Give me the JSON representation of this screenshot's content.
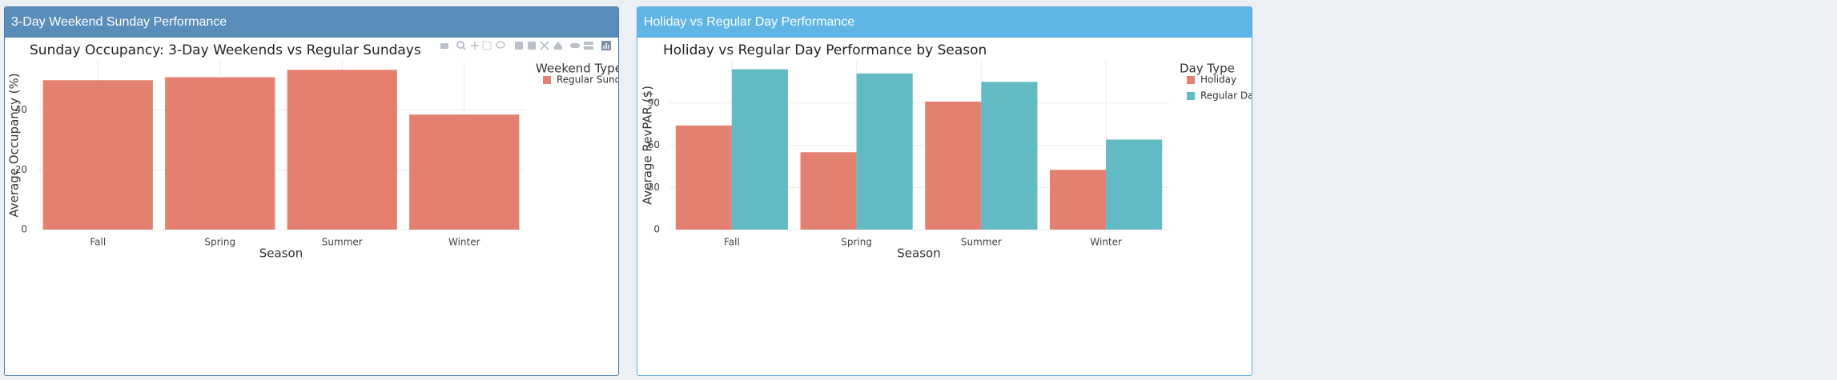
{
  "boxes": [
    {
      "header": "3-Day Weekend Sunday Performance",
      "header_color": "#5b8dbb",
      "border_color": "#4b7db0"
    },
    {
      "header": "Holiday vs Regular Day Performance",
      "header_color": "#5fb6e4",
      "border_color": "#55aee0"
    }
  ],
  "modebar_icons": [
    "camera-icon",
    "zoom-icon",
    "pan-icon",
    "box-select-icon",
    "lasso-icon",
    "zoom-in-icon",
    "zoom-out-icon",
    "autoscale-icon",
    "reset-axes-icon",
    "spike-lines-icon",
    "hover-closest-icon",
    "hover-compare-icon",
    "plotly-logo-icon"
  ],
  "chart_data": [
    {
      "type": "bar",
      "title": "Sunday Occupancy: 3-Day Weekends vs Regular Sundays",
      "xlabel": "Season",
      "ylabel": "Average Occupancy (%)",
      "categories": [
        "Fall",
        "Spring",
        "Summer",
        "Winter"
      ],
      "series": [
        {
          "name": "Regular Sunday",
          "color": "#e48070",
          "values": [
            50,
            51,
            53.5,
            38.5
          ]
        }
      ],
      "ylim": [
        0,
        56.5
      ],
      "yticks": [
        0,
        20,
        40
      ],
      "legend_title": "Weekend Type",
      "legend_position": "top-right",
      "grid": true
    },
    {
      "type": "bar",
      "title": "Holiday vs Regular Day Performance by Season",
      "xlabel": "Season",
      "ylabel": "Average RevPAR ($)",
      "categories": [
        "Fall",
        "Spring",
        "Summer",
        "Winter"
      ],
      "series": [
        {
          "name": "Holiday",
          "color": "#e48070",
          "values": [
            74,
            55,
            91,
            42.5
          ]
        },
        {
          "name": "Regular Day",
          "color": "#62bac4",
          "values": [
            114,
            111,
            105,
            64
          ]
        }
      ],
      "ylim": [
        0,
        120
      ],
      "yticks": [
        0,
        30,
        60,
        90
      ],
      "legend_title": "Day Type",
      "legend_position": "top-right",
      "grid": true
    }
  ]
}
